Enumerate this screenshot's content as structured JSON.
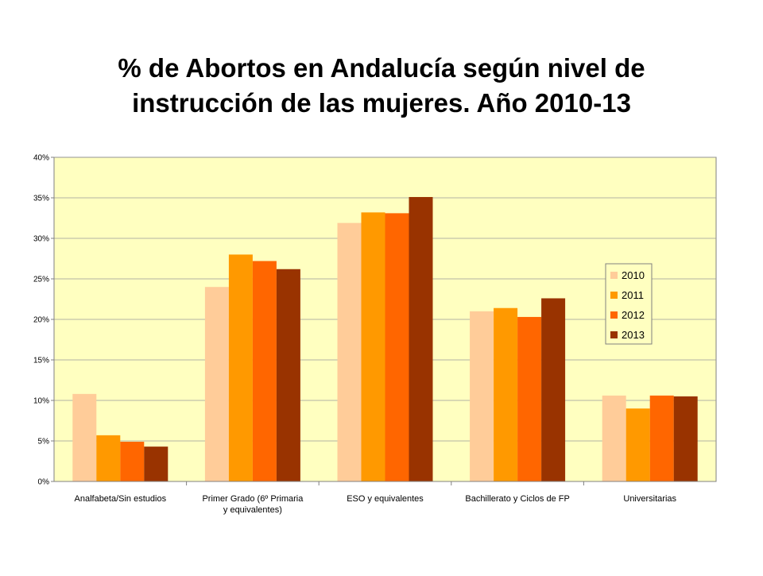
{
  "slide": {
    "title_line1": "% de Abortos en Andalucía según nivel de",
    "title_line2": "instrucción de las mujeres. Año 2010-13"
  },
  "chart_data": {
    "type": "bar",
    "title": "",
    "xlabel": "",
    "ylabel": "",
    "ylim": [
      0,
      40
    ],
    "yticks": [
      0,
      5,
      10,
      15,
      20,
      25,
      30,
      35,
      40
    ],
    "ytick_labels": [
      "0%",
      "5%",
      "10%",
      "15%",
      "20%",
      "25%",
      "30%",
      "35%",
      "40%"
    ],
    "grid": true,
    "legend_position": "right",
    "plot_background": "#FFFFC0",
    "categories": [
      [
        "Analfabeta/Sin estudios"
      ],
      [
        "Primer Grado (6º Primaria",
        "y equivalentes)"
      ],
      [
        "ESO y equivalentes"
      ],
      [
        "Bachillerato y Ciclos de FP"
      ],
      [
        "Universitarias"
      ]
    ],
    "series": [
      {
        "name": "2010",
        "color": "#FFCC99",
        "values": [
          10.8,
          24.0,
          31.9,
          21.0,
          10.6
        ]
      },
      {
        "name": "2011",
        "color": "#FF9900",
        "values": [
          5.7,
          28.0,
          33.2,
          21.4,
          9.0
        ]
      },
      {
        "name": "2012",
        "color": "#FF6600",
        "values": [
          4.9,
          27.2,
          33.1,
          20.3,
          10.6
        ]
      },
      {
        "name": "2013",
        "color": "#993300",
        "values": [
          4.3,
          26.2,
          35.1,
          22.6,
          10.5
        ]
      }
    ]
  }
}
